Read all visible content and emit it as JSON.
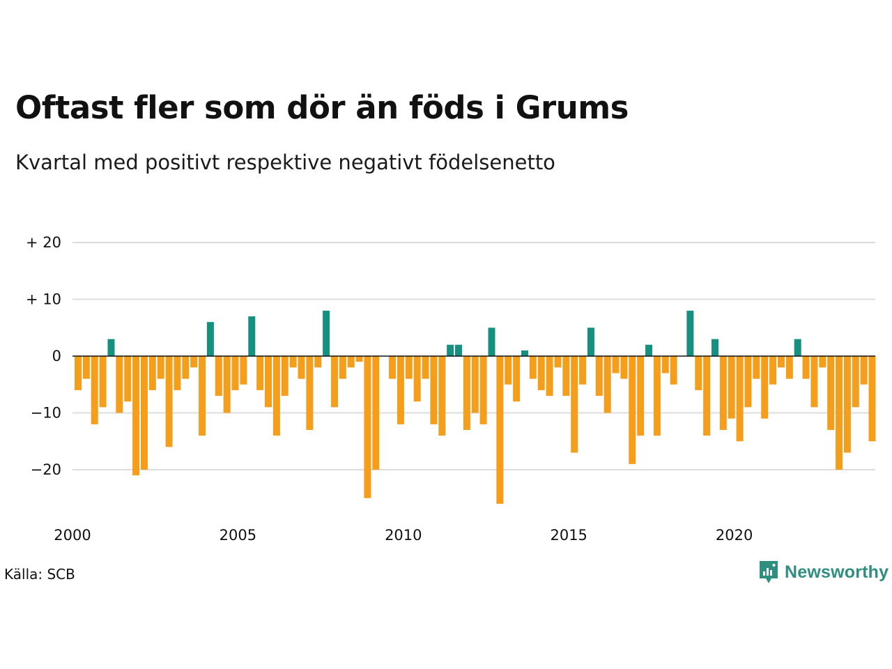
{
  "title": "Oftast fler som dör än föds i Grums",
  "subtitle": "Kvartal med positivt respektive negativt födelsenetto",
  "source": "Källa: SCB",
  "brand": {
    "name": "Newsworthy",
    "icon": "newsworthy-logo-icon"
  },
  "colors": {
    "positive": "#16917f",
    "negative": "#f59e1c",
    "grid": "#dddddd",
    "zero_line": "#111111"
  },
  "chart_data": {
    "type": "bar",
    "title": "Oftast fler som dör än föds i Grums",
    "subtitle": "Kvartal med positivt respektive negativt födelsenetto",
    "xlabel": "",
    "ylabel": "",
    "first_quarter": "2000 Q1",
    "x_ticks": [
      "2000",
      "2005",
      "2010",
      "2015",
      "2020"
    ],
    "y_ticks": [
      {
        "value": 20,
        "label": "+ 20"
      },
      {
        "value": 10,
        "label": "+ 10"
      },
      {
        "value": 0,
        "label": "0"
      },
      {
        "value": -10,
        "label": "−10"
      },
      {
        "value": -20,
        "label": "−20"
      }
    ],
    "ylim": [
      -28,
      20
    ],
    "grid": true,
    "values": [
      -6,
      -4,
      -12,
      -9,
      3,
      -10,
      -8,
      -21,
      -20,
      -6,
      -4,
      -16,
      -6,
      -4,
      -2,
      -14,
      6,
      -7,
      -10,
      -6,
      -5,
      7,
      -6,
      -9,
      -14,
      -7,
      -2,
      -4,
      -13,
      -2,
      8,
      -9,
      -4,
      -2,
      -1,
      -25,
      -20,
      0,
      -4,
      -12,
      -4,
      -8,
      -4,
      -12,
      -14,
      2,
      2,
      -13,
      -10,
      -12,
      5,
      -26,
      -5,
      -8,
      1,
      -4,
      -6,
      -7,
      -2,
      -7,
      -17,
      -5,
      5,
      -7,
      -10,
      -3,
      -4,
      -19,
      -14,
      2,
      -14,
      -3,
      -5,
      0,
      8,
      -6,
      -14,
      3,
      -13,
      -11,
      -15,
      -9,
      -4,
      -11,
      -5,
      -2,
      -4,
      3,
      -4,
      -9,
      -2,
      -13,
      -20,
      -17,
      -9,
      -5,
      -15
    ]
  }
}
